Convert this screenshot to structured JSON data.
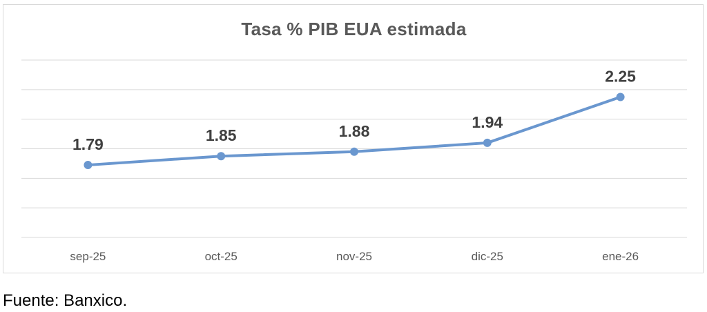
{
  "chart_data": {
    "type": "line",
    "title": "Tasa % PIB EUA estimada",
    "categories": [
      "sep-25",
      "oct-25",
      "nov-25",
      "dic-25",
      "ene-26"
    ],
    "values": [
      1.79,
      1.85,
      1.88,
      1.94,
      2.25
    ],
    "data_labels": [
      "1.79",
      "1.85",
      "1.88",
      "1.94",
      "2.25"
    ],
    "ylim": [
      1.3,
      2.5
    ],
    "grid": true,
    "legend": "none",
    "line_color": "#6a97cf",
    "gridline_color": "#d9d9d9"
  },
  "source_note": "Fuente: Banxico."
}
